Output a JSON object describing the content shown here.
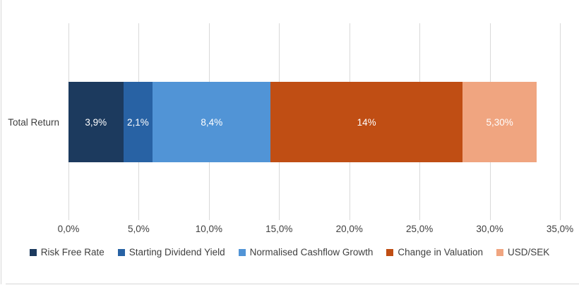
{
  "chart_data": {
    "type": "bar",
    "stacked": true,
    "orientation": "horizontal",
    "title": "",
    "xlabel": "",
    "ylabel": "",
    "categories": [
      "Total Return"
    ],
    "series": [
      {
        "name": "Risk Free Rate",
        "value": 3.9,
        "label": "3,9%",
        "color": "#1c3a5e",
        "plot_value": 3.9
      },
      {
        "name": "Starting Dividend Yield",
        "value": 2.1,
        "label": "2,1%",
        "color": "#2862a4",
        "plot_value": 2.1
      },
      {
        "name": "Normalised Cashflow Growth",
        "value": 8.4,
        "label": "8,4%",
        "color": "#5194d6",
        "plot_value": 8.4
      },
      {
        "name": "Change in Valuation",
        "value": 14,
        "label": "14%",
        "color": "#c04e14",
        "plot_value": 13.66
      },
      {
        "name": "USD/SEK",
        "value": 5.3,
        "label": "5,30%",
        "color": "#f0a580",
        "plot_value": 5.3
      }
    ],
    "xticks": [
      "0,0%",
      "5,0%",
      "10,0%",
      "15,0%",
      "20,0%",
      "25,0%",
      "30,0%",
      "35,0%"
    ],
    "xlim": [
      0,
      35
    ],
    "tick_step": 5,
    "grid": true,
    "legend_position": "bottom"
  },
  "colors": {
    "background": "#ffffff",
    "gridline": "#d9d9d9",
    "axis_text": "#3f3f3f",
    "data_label_text": "#ffffff",
    "frame_edge": "#d8d8d8"
  }
}
